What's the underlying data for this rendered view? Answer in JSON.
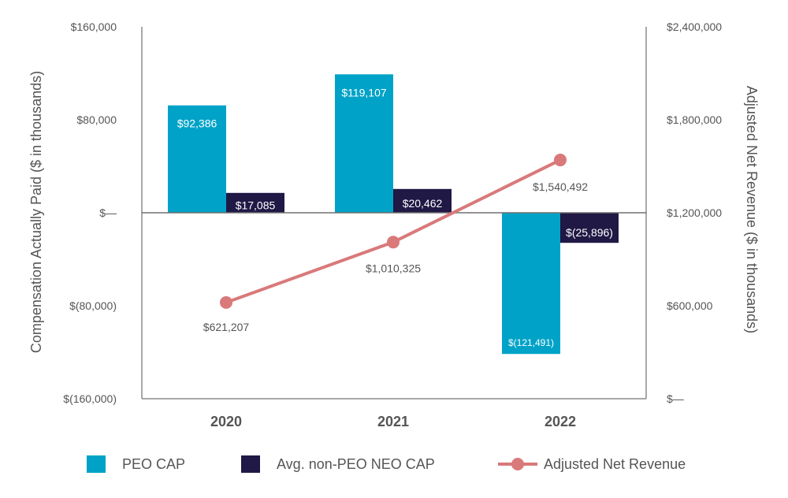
{
  "chart_data": {
    "type": "bar",
    "categories": [
      "2020",
      "2021",
      "2022"
    ],
    "left_axis": {
      "label": "Compensation Actually Paid ($ in thousands)",
      "ylim": [
        -160000,
        160000
      ],
      "ticks": [
        160000,
        80000,
        0,
        -80000,
        -160000
      ],
      "tick_labels": [
        "$160,000",
        "$80,000",
        "$—",
        "$(80,000)",
        "$(160,000)"
      ]
    },
    "right_axis": {
      "label": "Adjusted Net Revenue ($ in thousands)",
      "ylim": [
        0,
        2400000
      ],
      "ticks": [
        2400000,
        1800000,
        1200000,
        600000,
        0
      ],
      "tick_labels": [
        "$2,400,000",
        "$1,800,000",
        "$1,200,000",
        "$600,000",
        "$—"
      ]
    },
    "series": [
      {
        "name": "PEO CAP",
        "kind": "bar",
        "axis": "left",
        "color": "#00a3c7",
        "values": [
          92386,
          119107,
          -121491
        ],
        "labels": [
          "$92,386",
          "$119,107",
          "$(121,491)"
        ]
      },
      {
        "name": "Avg. non-PEO NEO CAP",
        "kind": "bar",
        "axis": "left",
        "color": "#201845",
        "values": [
          17085,
          20462,
          -25896
        ],
        "labels": [
          "$17,085",
          "$20,462",
          "$(25,896)"
        ]
      },
      {
        "name": "Adjusted Net Revenue",
        "kind": "line",
        "axis": "right",
        "color": "#d9797a",
        "values": [
          621207,
          1010325,
          1540492
        ],
        "labels": [
          "$621,207",
          "$1,010,325",
          "$1,540,492"
        ]
      }
    ],
    "legend_position": "bottom",
    "grid": false
  }
}
